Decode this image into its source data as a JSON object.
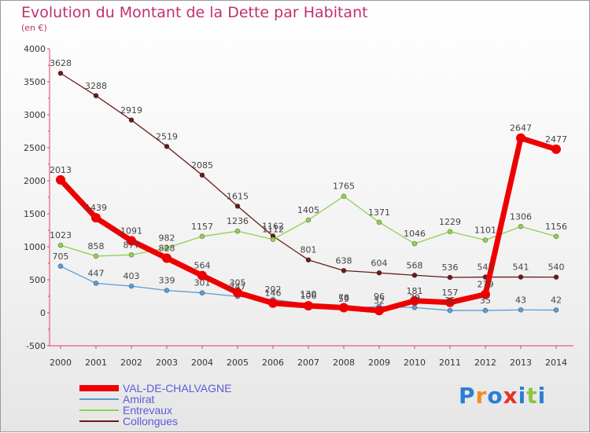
{
  "chart_data": {
    "type": "line",
    "title": "Evolution du Montant de la Dette par Habitant",
    "subtitle": "(en €)",
    "x": [
      "2000",
      "2001",
      "2002",
      "2003",
      "2004",
      "2005",
      "2006",
      "2007",
      "2008",
      "2009",
      "2010",
      "2011",
      "2012",
      "2013",
      "2014"
    ],
    "ylim": [
      -500,
      4000
    ],
    "yticks": [
      -500,
      0,
      500,
      1000,
      1500,
      2000,
      2500,
      3000,
      3500,
      4000
    ],
    "grid": false,
    "legend_position": "bottom-left",
    "series": [
      {
        "name": "VAL-DE-CHALVAGNE",
        "color": "#ee0000",
        "values": [
          2013,
          1439,
          1091,
          828,
          564,
          305,
          146,
          106,
          78,
          32,
          181,
          157,
          279,
          2647,
          2477
        ]
      },
      {
        "name": "Amirat",
        "color": "#5b9bd5",
        "values": [
          705,
          447,
          403,
          339,
          301,
          247,
          202,
          130,
          59,
          96,
          79,
          35,
          35,
          43,
          42
        ]
      },
      {
        "name": "Entrevaux",
        "color": "#8fd14f",
        "values": [
          1023,
          858,
          877,
          982,
          1157,
          1236,
          1112,
          1405,
          1765,
          1371,
          1046,
          1229,
          1101,
          1306,
          1156
        ]
      },
      {
        "name": "Collongues",
        "color": "#6b1a1a",
        "values": [
          3628,
          3288,
          2919,
          2519,
          2085,
          1615,
          1162,
          801,
          638,
          604,
          568,
          536,
          541,
          541,
          540
        ]
      }
    ]
  },
  "brand": {
    "letters": [
      "P",
      "r",
      "o",
      "x",
      "i",
      "t",
      "i"
    ],
    "colors": [
      "#2a7fd4",
      "#f28c1e",
      "#2a7fd4",
      "#e8302a",
      "#2a7fd4",
      "#8cc63f",
      "#2a7fd4"
    ]
  }
}
